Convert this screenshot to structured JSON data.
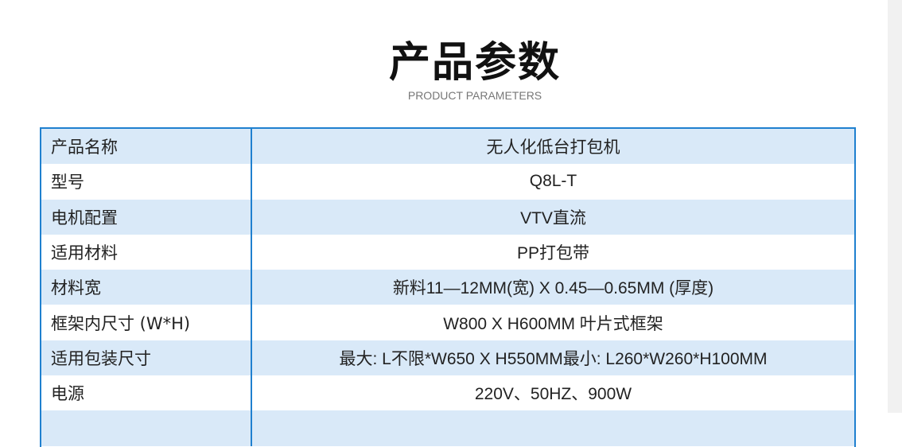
{
  "header": {
    "title": "产品参数",
    "subtitle": "PRODUCT PARAMETERS"
  },
  "rows": [
    {
      "label": "产品名称",
      "value": "无人化低台打包机"
    },
    {
      "label": "型号",
      "value": "Q8L-T"
    },
    {
      "label": "电机配置",
      "value": "VTV直流"
    },
    {
      "label": "适用材料",
      "value": "PP打包带"
    },
    {
      "label": "材料宽",
      "value": "新料11—12MM(宽) X 0.45—0.65MM (厚度)"
    },
    {
      "label": "框架内尺寸 (W*H)",
      "value": "W800 X H600MM  叶片式框架"
    },
    {
      "label": "适用包装尺寸",
      "value": "最大: L不限*W650 X H550MM最小: L260*W260*H100MM"
    },
    {
      "label": "电源",
      "value": "220V、50HZ、900W"
    },
    {
      "label": "",
      "value": ""
    }
  ]
}
